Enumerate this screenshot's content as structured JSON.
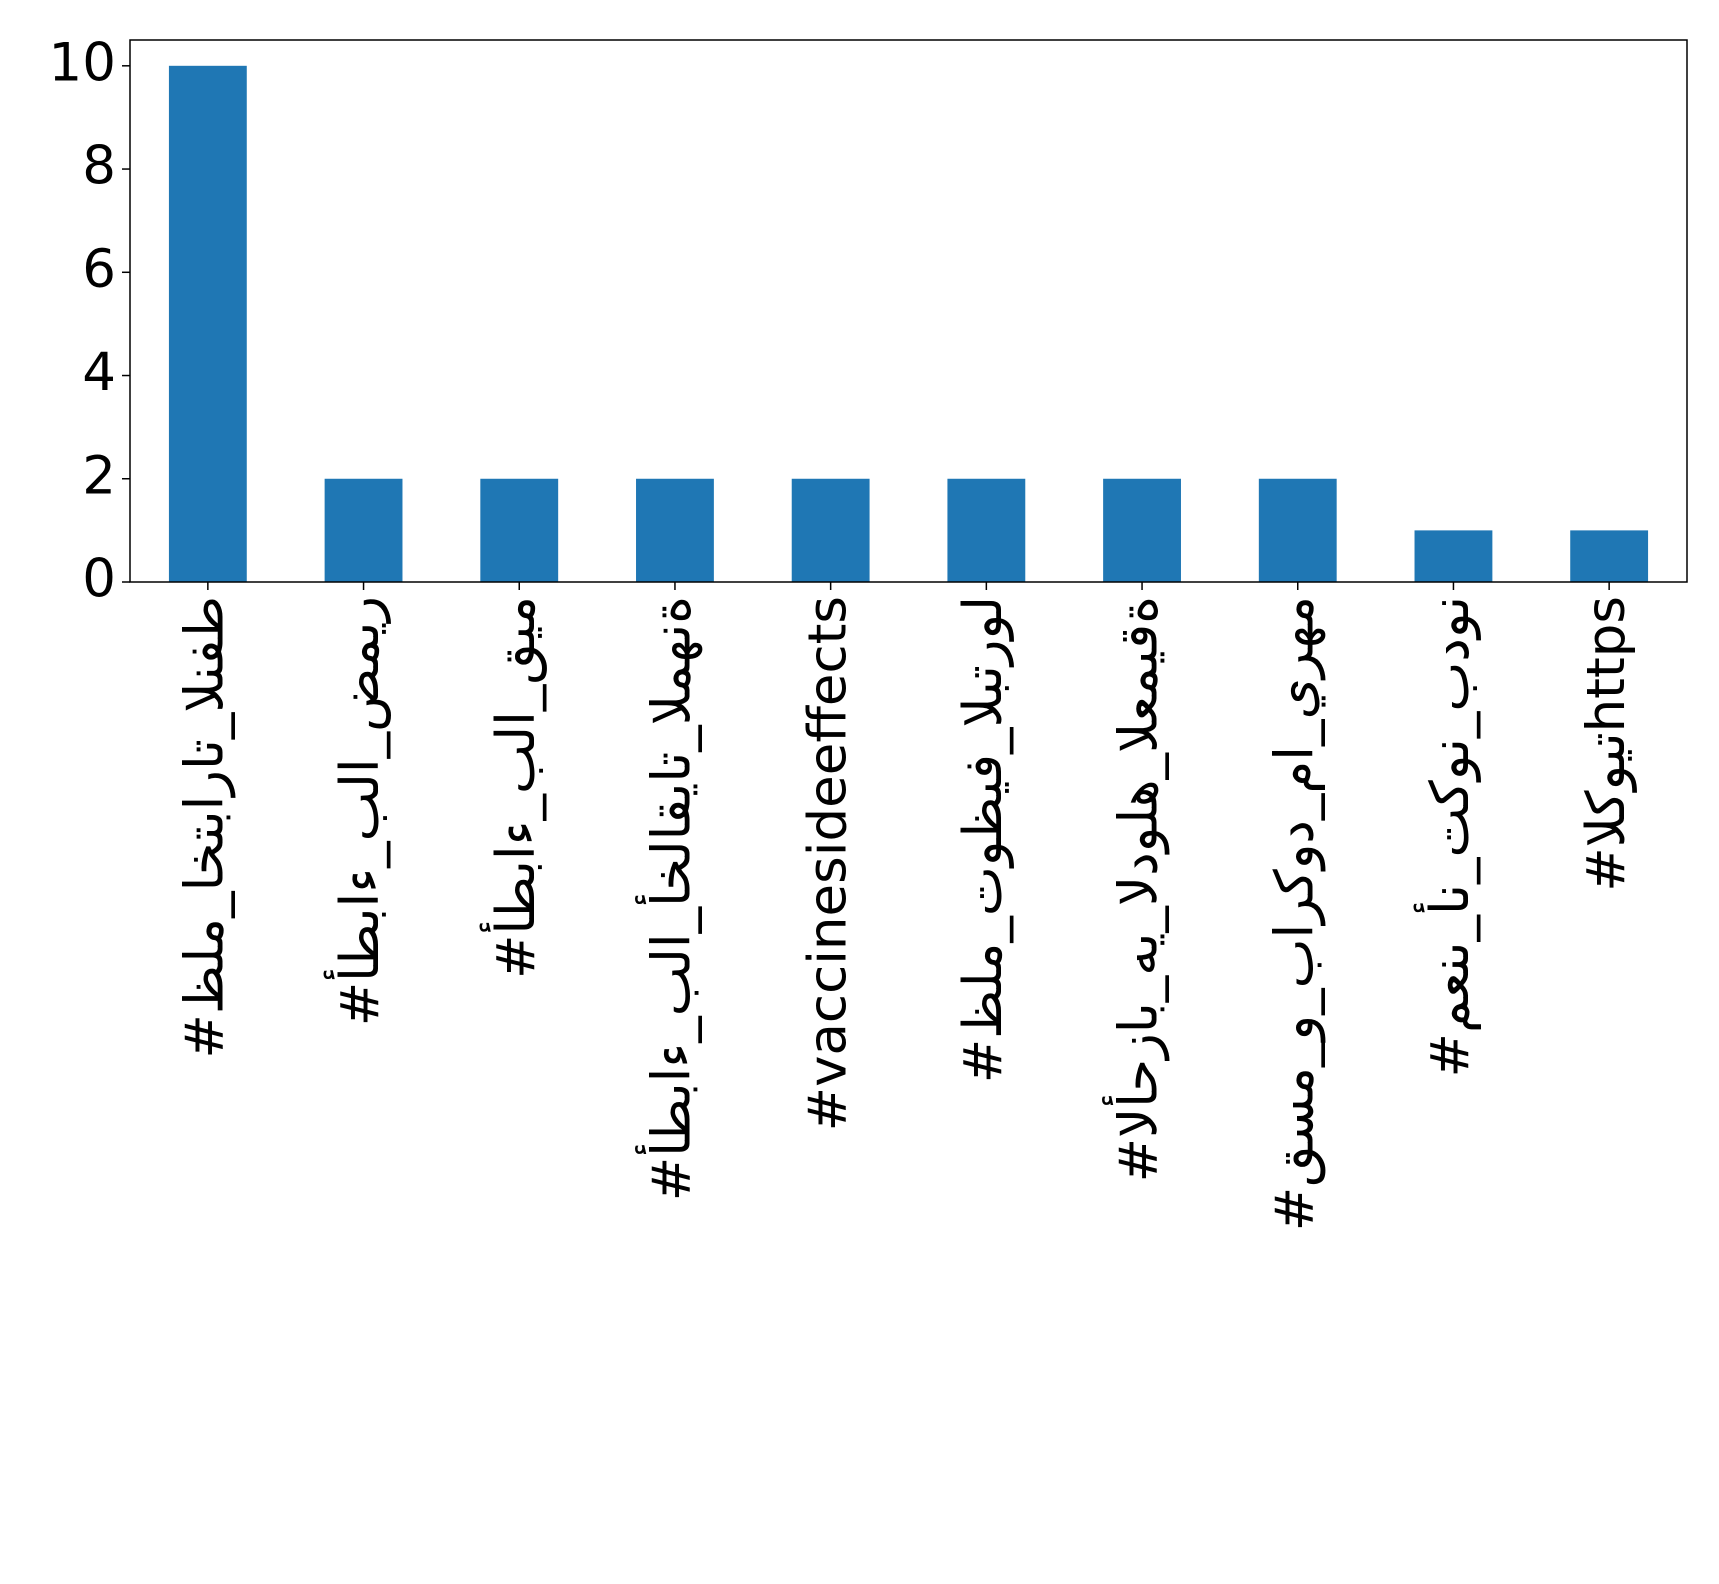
{
  "chart_data": {
    "type": "bar",
    "categories": [
      "#ظلم_اختبارات_النفط",
      "#أطباء_بلا_ضمير",
      "#أطباء_بلا_قيم",
      "#أطباء_بلا_أخلاقيات_المهنة",
      "#vaccinesideeffects",
      "#ظلم_توظيف_البترول",
      "#الأحزاب_هي_الدوله_العميقة",
      "#قسم_و_باركود_ما_يرهم",
      "#معنى_أن_تكون_بدون",
      "#الكويتhttps"
    ],
    "values": [
      10,
      2,
      2,
      2,
      2,
      2,
      2,
      2,
      1,
      1
    ],
    "color": "#1f77b4",
    "ylim": [
      0,
      10.5
    ],
    "yticks": [
      0,
      2,
      4,
      6,
      8,
      10
    ],
    "grid": false
  }
}
